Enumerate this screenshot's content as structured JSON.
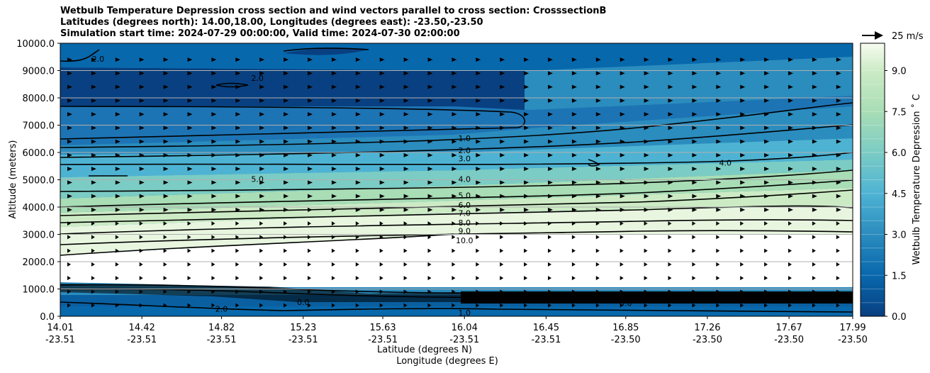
{
  "title_lines": [
    "Wetbulb Temperature Depression cross section and wind vectors parallel to cross section: CrosssectionB",
    "Latitudes (degrees north): 14.00,18.00, Longitudes (degrees east): -23.50,-23.50",
    "Simulation start time: 2024-07-29 00:00:00, Valid time: 2024-07-30 02:00:00"
  ],
  "chart_data": {
    "type": "contour",
    "title": "Wetbulb Temperature Depression cross section and wind vectors parallel to cross section: CrosssectionB",
    "xlabel": "Latitude (degrees N)",
    "xlabel2": "Longitude (degrees E)",
    "ylabel": "Altitude (meters)",
    "ylim": [
      0,
      10000
    ],
    "y_ticks": [
      "0.0",
      "1000.0",
      "2000.0",
      "3000.0",
      "4000.0",
      "5000.0",
      "6000.0",
      "7000.0",
      "8000.0",
      "9000.0",
      "10000.0"
    ],
    "x_ticks": [
      {
        "lat": "14.01",
        "lon": "-23.51"
      },
      {
        "lat": "14.42",
        "lon": "-23.51"
      },
      {
        "lat": "14.82",
        "lon": "-23.51"
      },
      {
        "lat": "15.23",
        "lon": "-23.51"
      },
      {
        "lat": "15.63",
        "lon": "-23.51"
      },
      {
        "lat": "16.04",
        "lon": "-23.51"
      },
      {
        "lat": "16.45",
        "lon": "-23.51"
      },
      {
        "lat": "16.85",
        "lon": "-23.50"
      },
      {
        "lat": "17.26",
        "lon": "-23.50"
      },
      {
        "lat": "17.67",
        "lon": "-23.50"
      },
      {
        "lat": "17.99",
        "lon": "-23.50"
      }
    ],
    "colorbar": {
      "label": "Wetbulb Temperature Depression ˚ C",
      "ticks": [
        "0.0",
        "1.5",
        "3.0",
        "4.5",
        "6.0",
        "7.5",
        "9.0"
      ],
      "min": 0,
      "max": 10
    },
    "contour_labels": [
      {
        "text": "1.0",
        "lat": 16.04,
        "alt": 6500
      },
      {
        "text": "2.0",
        "lat": 16.04,
        "alt": 6050
      },
      {
        "text": "3.0",
        "lat": 16.04,
        "alt": 5750
      },
      {
        "text": "4.0",
        "lat": 16.04,
        "alt": 5000
      },
      {
        "text": "5.0",
        "lat": 16.04,
        "alt": 4400
      },
      {
        "text": "6.0",
        "lat": 16.04,
        "alt": 4050
      },
      {
        "text": "7.0",
        "lat": 16.04,
        "alt": 3750
      },
      {
        "text": "8.0",
        "lat": 16.04,
        "alt": 3400
      },
      {
        "text": "9.0",
        "lat": 16.04,
        "alt": 3100
      },
      {
        "text": "10.0",
        "lat": 16.04,
        "alt": 2750
      },
      {
        "text": "1.0",
        "lat": 16.04,
        "alt": 100
      },
      {
        "text": "2.0",
        "lat": 14.82,
        "alt": 250
      },
      {
        "text": "0.0",
        "lat": 15.23,
        "alt": 500
      },
      {
        "text": "0.0",
        "lat": 16.85,
        "alt": 450
      },
      {
        "text": "2.0",
        "lat": 14.2,
        "alt": 9400
      },
      {
        "text": "2.0",
        "lat": 15.0,
        "alt": 8700
      },
      {
        "text": "4.0",
        "lat": 17.35,
        "alt": 5600
      },
      {
        "text": "5.0",
        "lat": 15.0,
        "alt": 5000
      }
    ],
    "wind_reference": "25 m/s"
  }
}
